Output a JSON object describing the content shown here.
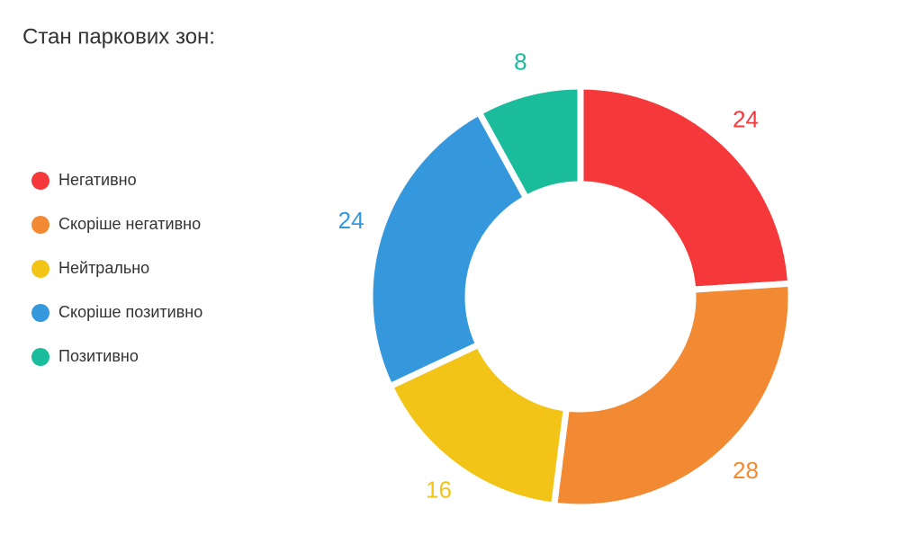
{
  "chart_data": {
    "type": "donut",
    "title": "Стан паркових зон:",
    "categories": [
      "Негативно",
      "Скоріше негативно",
      "Нейтрально",
      "Скоріше позитивно",
      "Позитивно"
    ],
    "values": [
      24,
      28,
      16,
      24,
      8
    ],
    "colors": [
      "#f5393b",
      "#f28a33",
      "#f2c417",
      "#3598dc",
      "#1abc9c"
    ],
    "legend": "left"
  }
}
